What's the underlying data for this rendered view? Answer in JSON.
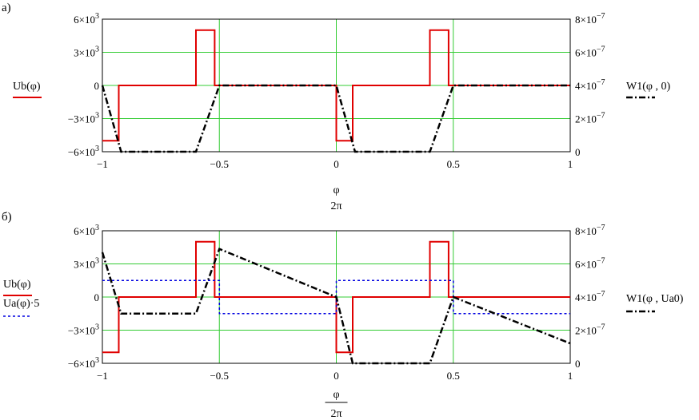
{
  "chart_data": [
    {
      "panel_label": "а)",
      "type": "line",
      "xlim": [
        -1,
        1
      ],
      "ylim_left": [
        -6000,
        6000
      ],
      "ylim_right": [
        0,
        8e-07
      ],
      "grid": true,
      "x_ticks": [
        -1,
        -0.5,
        0,
        0.5,
        1
      ],
      "x_tick_labels": [
        "−1",
        "−0.5",
        "0",
        "0.5",
        "1"
      ],
      "y_left_ticks": [
        6000,
        3000,
        0,
        -3000,
        -6000
      ],
      "y_left_tick_labels": [
        {
          "base": "6×10",
          "exp": "3"
        },
        {
          "base": "3×10",
          "exp": "3"
        },
        {
          "base": "0",
          "exp": ""
        },
        {
          "base": "−3×10",
          "exp": "3"
        },
        {
          "base": "−6×10",
          "exp": "3"
        }
      ],
      "y_right_ticks": [
        8e-07,
        6e-07,
        4e-07,
        2e-07,
        0
      ],
      "y_right_tick_labels": [
        {
          "base": "8×10",
          "exp": "−7"
        },
        {
          "base": "6×10",
          "exp": "−7"
        },
        {
          "base": "4×10",
          "exp": "−7"
        },
        {
          "base": "2×10",
          "exp": "−7"
        },
        {
          "base": "0",
          "exp": ""
        }
      ],
      "xlabel_num": "φ",
      "xlabel_den": "2π",
      "xlabel_bar": false,
      "series": [
        {
          "name": "Ub(φ)",
          "axis": "left",
          "color": "#e00000",
          "style": "solid",
          "x": [
            -1,
            -0.93,
            -0.93,
            -0.6,
            -0.6,
            -0.52,
            -0.52,
            0,
            0,
            0.07,
            0.07,
            0.4,
            0.4,
            0.48,
            0.48,
            1
          ],
          "y": [
            -5000,
            -5000,
            0,
            0,
            5000,
            5000,
            0,
            0,
            -5000,
            -5000,
            0,
            0,
            5000,
            5000,
            0,
            0
          ]
        },
        {
          "name": "W1(φ , 0)",
          "axis": "right",
          "color": "#000000",
          "style": "dashdot",
          "x": [
            -1,
            -0.92,
            -0.6,
            -0.5,
            0,
            0.08,
            0.4,
            0.5,
            1
          ],
          "y": [
            4e-07,
            0,
            0,
            4e-07,
            4e-07,
            0,
            0,
            4e-07,
            4e-07
          ]
        }
      ]
    },
    {
      "panel_label": "б)",
      "type": "line",
      "xlim": [
        -1,
        1
      ],
      "ylim_left": [
        -6000,
        6000
      ],
      "ylim_right": [
        0,
        8e-07
      ],
      "grid": true,
      "x_ticks": [
        -1,
        -0.5,
        0,
        0.5,
        1
      ],
      "x_tick_labels": [
        "−1",
        "−0.5",
        "0",
        "0.5",
        "1"
      ],
      "y_left_ticks": [
        6000,
        3000,
        0,
        -3000,
        -6000
      ],
      "y_left_tick_labels": [
        {
          "base": "6×10",
          "exp": "3"
        },
        {
          "base": "3×10",
          "exp": "3"
        },
        {
          "base": "0",
          "exp": ""
        },
        {
          "base": "−3×10",
          "exp": "3"
        },
        {
          "base": "−6×10",
          "exp": "3"
        }
      ],
      "y_right_ticks": [
        8e-07,
        6e-07,
        4e-07,
        2e-07,
        0
      ],
      "y_right_tick_labels": [
        {
          "base": "8×10",
          "exp": "−7"
        },
        {
          "base": "6×10",
          "exp": "−7"
        },
        {
          "base": "4×10",
          "exp": "−7"
        },
        {
          "base": "2×10",
          "exp": "−7"
        },
        {
          "base": "0",
          "exp": ""
        }
      ],
      "xlabel_num": "φ",
      "xlabel_den": "2π",
      "xlabel_bar": true,
      "series": [
        {
          "name": "Ub(φ)",
          "axis": "left",
          "color": "#e00000",
          "style": "solid",
          "x": [
            -1,
            -0.93,
            -0.93,
            -0.6,
            -0.6,
            -0.52,
            -0.52,
            0,
            0,
            0.07,
            0.07,
            0.4,
            0.4,
            0.48,
            0.48,
            1
          ],
          "y": [
            -5000,
            -5000,
            0,
            0,
            5000,
            5000,
            0,
            0,
            -5000,
            -5000,
            0,
            0,
            5000,
            5000,
            0,
            0
          ]
        },
        {
          "name": "Ua(φ)·5",
          "axis": "left",
          "color": "#0000e0",
          "style": "dotted",
          "x": [
            -1,
            -0.5,
            -0.5,
            0,
            0,
            0.5,
            0.5,
            1
          ],
          "y": [
            1500,
            1500,
            -1500,
            -1500,
            1500,
            1500,
            -1500,
            -1500
          ]
        },
        {
          "name": "W1(φ , Ua0)",
          "axis": "right",
          "color": "#000000",
          "style": "dashdot",
          "x": [
            -1,
            -0.92,
            -0.6,
            -0.5,
            0,
            0.07,
            0.4,
            0.5,
            1
          ],
          "y": [
            6.7e-07,
            3e-07,
            3e-07,
            6.9e-07,
            4e-07,
            0,
            0,
            4e-07,
            1.2e-07
          ]
        }
      ]
    }
  ]
}
